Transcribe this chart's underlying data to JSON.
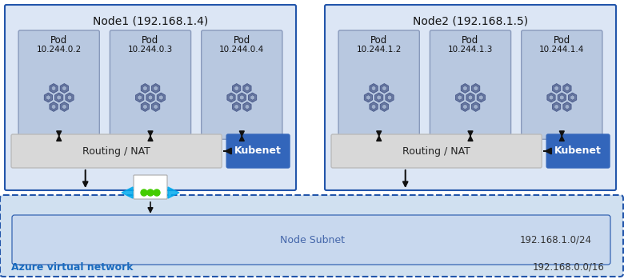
{
  "fig_width": 7.8,
  "fig_height": 3.49,
  "bg_color": "#ffffff",
  "node1_label": "Node1 (192.168.1.4)",
  "node2_label": "Node2 (192.168.1.5)",
  "node_bg": "#dce6f5",
  "node_border": "#2255aa",
  "pod_bg": "#b8c8e0",
  "pod_border": "#8899bb",
  "routing_bg": "#d8d8d8",
  "routing_border": "#bbbbbb",
  "kubenet_bg": "#3366bb",
  "kubenet_text": "#ffffff",
  "vnet_bg": "#d0e0f0",
  "vnet_border": "#2255aa",
  "subnet_inner_bg": "#c8d8ee",
  "node1_label_text": "Node1 (192.168.1.4)",
  "node2_label_text": "Node2 (192.168.1.5)",
  "node1_pods": [
    {
      "line1": "Pod",
      "line2": "10.244.0.2"
    },
    {
      "line1": "Pod",
      "line2": "10.244.0.3"
    },
    {
      "line1": "Pod",
      "line2": "10.244.0.4"
    }
  ],
  "node2_pods": [
    {
      "line1": "Pod",
      "line2": "10.244.1.2"
    },
    {
      "line1": "Pod",
      "line2": "10.244.1.3"
    },
    {
      "line1": "Pod",
      "line2": "10.244.1.4"
    }
  ],
  "azure_label": "Azure virtual network",
  "azure_label_color": "#1a6bbf",
  "azure_cidr": "192.168.0.0/16",
  "subnet_label": "Node Subnet",
  "subnet_cidr": "192.168.1.0/24",
  "routing_label": "Routing / NAT",
  "kubenet_label": "Kubenet",
  "icon_body_color": "#7080a8",
  "icon_top_color": "#9aaace",
  "icon_edge_color": "#4455778"
}
